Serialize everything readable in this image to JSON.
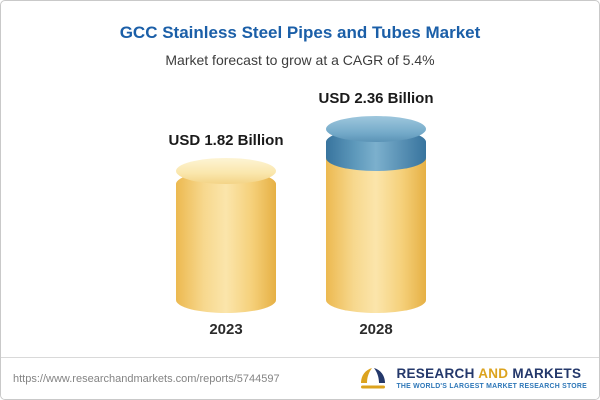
{
  "chart_data": {
    "type": "bar",
    "subtype": "3d-cylinder",
    "title": "GCC Stainless Steel Pipes and Tubes Market",
    "subtitle": "Market forecast to grow at a CAGR of 5.4%",
    "cagr_percent": 5.4,
    "unit": "USD Billion",
    "categories": [
      "2023",
      "2028"
    ],
    "values": [
      1.82,
      2.36
    ],
    "value_labels": [
      "USD 1.82 Billion",
      "USD 2.36 Billion"
    ],
    "series": [
      {
        "name": "base-value",
        "color": "#F3CC6B",
        "values": [
          1.82,
          1.82
        ]
      },
      {
        "name": "forecast-growth",
        "color": "#4E89B0",
        "values": [
          0,
          0.54
        ]
      }
    ],
    "axes": {
      "x_visible": false,
      "y_visible": false,
      "grid": false
    },
    "legend": "none"
  },
  "footer": {
    "url": "https://www.researchandmarkets.com/reports/5744597",
    "logo": {
      "research": "RESEARCH",
      "and": "AND",
      "markets": "MARKETS",
      "tagline": "THE WORLD'S LARGEST MARKET RESEARCH STORE",
      "navy": "#24386B",
      "gold": "#DCA31E"
    }
  }
}
